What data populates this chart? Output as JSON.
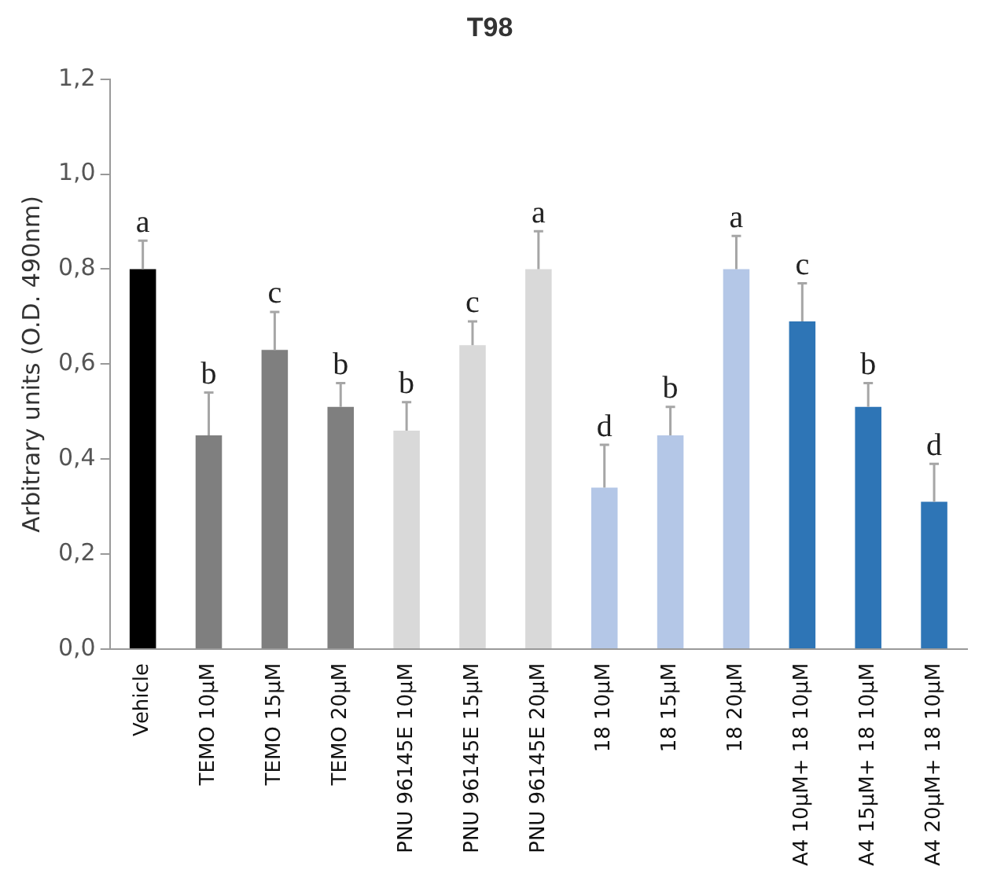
{
  "chart_data": {
    "type": "bar",
    "title": "T98",
    "ylabel": "Arbitrary units (O.D. 490nm)",
    "categories": [
      "Vehicle",
      "TEMO 10µM",
      "TEMO 15µM",
      "TEMO 20µM",
      "PNU 96145E 10µM",
      "PNU 96145E 15µM",
      "PNU 96145E 20µM",
      "18 10µM",
      "18 15µM",
      "18 20µM",
      "A4 10µM+ 18 10µM",
      "A4 15µM+ 18 10µM",
      "A4 20µM+ 18 10µM"
    ],
    "values": [
      0.8,
      0.45,
      0.63,
      0.51,
      0.46,
      0.64,
      0.8,
      0.34,
      0.45,
      0.8,
      0.69,
      0.51,
      0.31
    ],
    "errors": [
      0.06,
      0.09,
      0.08,
      0.05,
      0.06,
      0.05,
      0.08,
      0.09,
      0.06,
      0.07,
      0.08,
      0.05,
      0.08
    ],
    "colors": [
      "#000000",
      "#7f7f7f",
      "#7f7f7f",
      "#7f7f7f",
      "#d9d9d9",
      "#d9d9d9",
      "#d9d9d9",
      "#b4c7e7",
      "#b4c7e7",
      "#b4c7e7",
      "#2e75b6",
      "#2e75b6",
      "#2e75b6"
    ],
    "ylim": [
      0,
      1.2
    ],
    "yticks": [
      {
        "value": 0,
        "label": "0,0"
      },
      {
        "value": 0.2,
        "label": "0,2"
      },
      {
        "value": 0.4,
        "label": "0,4"
      },
      {
        "value": 0.6,
        "label": "0,6"
      },
      {
        "value": 0.8,
        "label": "0,8"
      },
      {
        "value": 1.0,
        "label": "1,0"
      },
      {
        "value": 1.2,
        "label": "1,2"
      }
    ],
    "annotations": [
      {
        "text": "a",
        "x": "Vehicle",
        "y": 0.86
      },
      {
        "text": "b",
        "x": "TEMO 10µM",
        "y": 0.54
      },
      {
        "text": "c",
        "x": "TEMO 15µM",
        "y": 0.71
      },
      {
        "text": "b",
        "x": "TEMO 20µM",
        "y": 0.56
      },
      {
        "text": "b",
        "x": "PNU 96145E 10µM",
        "y": 0.52
      },
      {
        "text": "c",
        "x": "PNU 96145E 15µM",
        "y": 0.69
      },
      {
        "text": "a",
        "x": "PNU 96145E 20µM",
        "y": 0.88
      },
      {
        "text": "d",
        "x": "18 10µM",
        "y": 0.43
      },
      {
        "text": "b",
        "x": "18 15µM",
        "y": 0.51
      },
      {
        "text": "a",
        "x": "18 20µM",
        "y": 0.87
      },
      {
        "text": "c",
        "x": "A4 10µM+ 18 10µM",
        "y": 0.77
      },
      {
        "text": "b",
        "x": "A4 15µM+ 18 10µM",
        "y": 0.56
      },
      {
        "text": "d",
        "x": "A4 20µM+ 18 10µM",
        "y": 0.39
      }
    ],
    "grid": false,
    "legend": false
  }
}
